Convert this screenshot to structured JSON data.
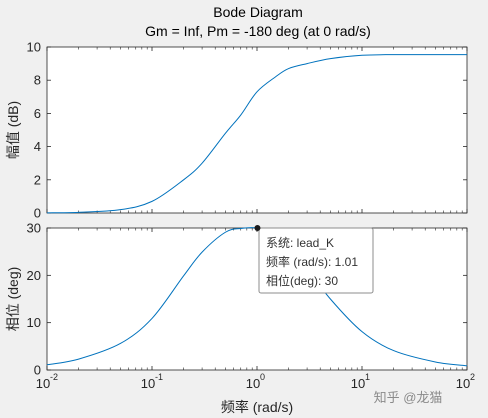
{
  "chart_data": {
    "type": "line",
    "title": "Bode Diagram",
    "subtitle": "Gm = Inf,  Pm = -180 deg (at 0 rad/s)",
    "x_scale": "log",
    "xlim": [
      0.01,
      100
    ],
    "xlabel": "频率  (rad/s)",
    "x_ticks": [
      {
        "value": 0.01,
        "base": "10",
        "exp": "-2"
      },
      {
        "value": 0.1,
        "base": "10",
        "exp": "-1"
      },
      {
        "value": 1,
        "base": "10",
        "exp": "0"
      },
      {
        "value": 10,
        "base": "10",
        "exp": "1"
      },
      {
        "value": 100,
        "base": "10",
        "exp": "2"
      }
    ],
    "magnitude": {
      "ylabel": "幅值 (dB)",
      "ylim": [
        0,
        10
      ],
      "y_ticks": [
        "0",
        "2",
        "4",
        "6",
        "8",
        "10"
      ],
      "series": [
        {
          "color": "#0072bd",
          "x": [
            0.01,
            0.02,
            0.05,
            0.1,
            0.2,
            0.3,
            0.5,
            0.7,
            1.0,
            1.5,
            2,
            3,
            5,
            10,
            20,
            100
          ],
          "y": [
            0.01,
            0.04,
            0.2,
            0.7,
            2.0,
            3.0,
            4.8,
            5.9,
            7.3,
            8.2,
            8.7,
            9.0,
            9.3,
            9.5,
            9.54,
            9.54
          ]
        }
      ]
    },
    "phase": {
      "ylabel": "相位 (deg)",
      "ylim": [
        0,
        30
      ],
      "y_ticks": [
        "0",
        "10",
        "20",
        "30"
      ],
      "series": [
        {
          "color": "#0072bd",
          "x": [
            0.01,
            0.02,
            0.05,
            0.1,
            0.2,
            0.3,
            0.5,
            0.7,
            1.0,
            1.5,
            2,
            3,
            5,
            10,
            20,
            50,
            100
          ],
          "y": [
            1.1,
            2.3,
            5.6,
            10.9,
            19.9,
            24.9,
            29.1,
            29.9,
            30.0,
            28.7,
            26.4,
            21.5,
            15.0,
            8.1,
            4.1,
            1.7,
            0.9
          ]
        }
      ]
    },
    "datatip": {
      "x": 1.01,
      "y": 30,
      "lines": [
        "系统: lead_K",
        "频率 (rad/s): 1.01",
        "相位(deg): 30"
      ]
    },
    "grid": false
  },
  "watermark": "知乎 @龙猫"
}
